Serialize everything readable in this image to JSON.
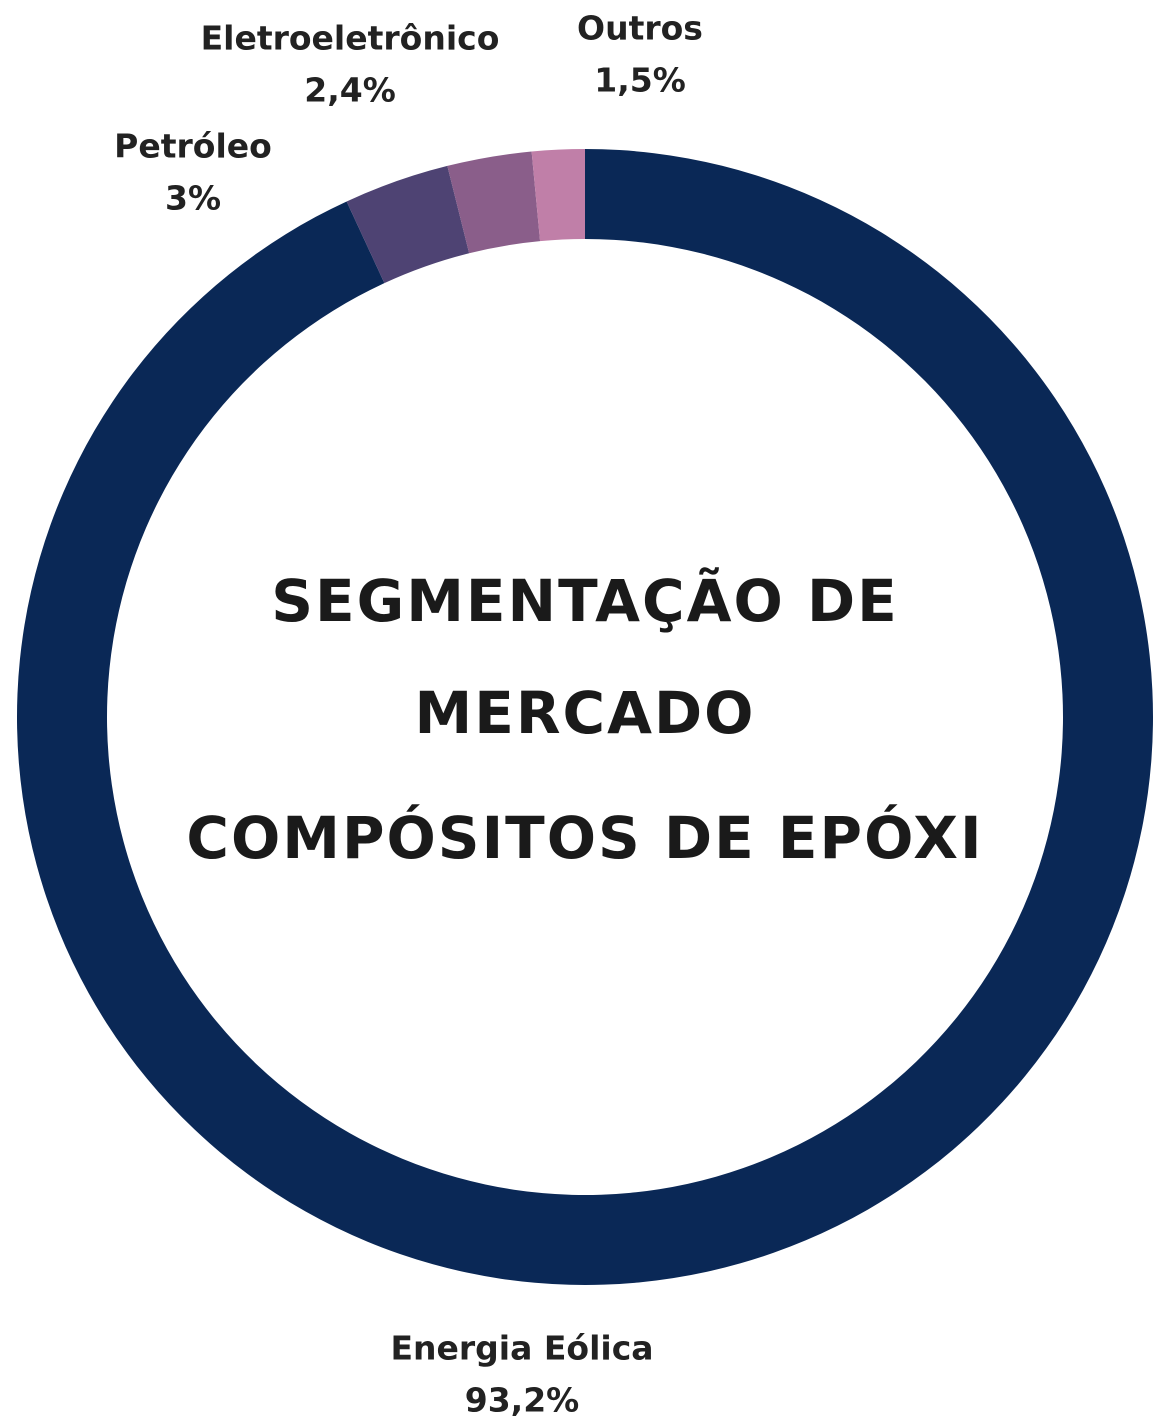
{
  "chart_data": {
    "type": "donut",
    "title": [
      "SEGMENTAÇÃO DE",
      "MERCADO",
      "COMPÓSITOS DE EPÓXI"
    ],
    "categories": [
      "Energia Eólica",
      "Petróleo",
      "Eletroeletrônico",
      "Outros"
    ],
    "values": [
      93.2,
      3,
      2.4,
      1.5
    ],
    "value_labels": [
      "93,2%",
      "3%",
      "2,4%",
      "1,5%"
    ],
    "colors": [
      "#0a2856",
      "#4e4373",
      "#8a5e8a",
      "#c07fa8"
    ]
  }
}
